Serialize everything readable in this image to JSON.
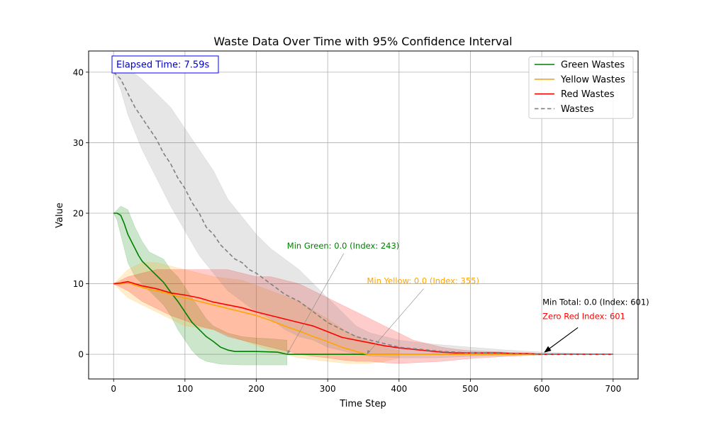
{
  "chart_data": {
    "type": "line",
    "title": "Waste Data Over Time with 95% Confidence Interval",
    "xlabel": "Time Step",
    "ylabel": "Value",
    "xlim": [
      -35,
      735
    ],
    "ylim": [
      -3.5,
      43
    ],
    "xticks": [
      0,
      100,
      200,
      300,
      400,
      500,
      600,
      700
    ],
    "yticks": [
      0,
      10,
      20,
      30,
      40
    ],
    "grid": true,
    "legend_placement": "top-right",
    "series": [
      {
        "name": "Green Wastes",
        "color": "#008000",
        "style": "solid",
        "points": [
          [
            0,
            20
          ],
          [
            5,
            20
          ],
          [
            10,
            19.7
          ],
          [
            15,
            18.5
          ],
          [
            20,
            17
          ],
          [
            25,
            16
          ],
          [
            30,
            15
          ],
          [
            35,
            14
          ],
          [
            40,
            13.2
          ],
          [
            50,
            12.2
          ],
          [
            60,
            11.2
          ],
          [
            70,
            10.2
          ],
          [
            80,
            8.8
          ],
          [
            90,
            7.5
          ],
          [
            100,
            6
          ],
          [
            110,
            4.5
          ],
          [
            120,
            3.5
          ],
          [
            130,
            2.5
          ],
          [
            140,
            1.8
          ],
          [
            150,
            1
          ],
          [
            160,
            0.6
          ],
          [
            170,
            0.4
          ],
          [
            200,
            0.4
          ],
          [
            230,
            0.3
          ],
          [
            243,
            0
          ],
          [
            700,
            0
          ]
        ],
        "ci_upper": [
          [
            0,
            20
          ],
          [
            5,
            20.5
          ],
          [
            10,
            21
          ],
          [
            20,
            20.5
          ],
          [
            30,
            18
          ],
          [
            40,
            16
          ],
          [
            50,
            14.5
          ],
          [
            60,
            14
          ],
          [
            70,
            13.5
          ],
          [
            80,
            12
          ],
          [
            90,
            11
          ],
          [
            100,
            9.5
          ],
          [
            110,
            8
          ],
          [
            120,
            6.5
          ],
          [
            130,
            5
          ],
          [
            140,
            4
          ],
          [
            150,
            3.5
          ],
          [
            160,
            3
          ],
          [
            180,
            2.5
          ],
          [
            200,
            2.3
          ],
          [
            220,
            2.2
          ],
          [
            243,
            2
          ]
        ],
        "ci_lower": [
          [
            0,
            20
          ],
          [
            5,
            19
          ],
          [
            10,
            17
          ],
          [
            20,
            13
          ],
          [
            30,
            11
          ],
          [
            40,
            10
          ],
          [
            50,
            9
          ],
          [
            60,
            8
          ],
          [
            70,
            7
          ],
          [
            80,
            5.5
          ],
          [
            90,
            3.5
          ],
          [
            100,
            2
          ],
          [
            110,
            0.5
          ],
          [
            120,
            -0.5
          ],
          [
            130,
            -1
          ],
          [
            150,
            -1.4
          ],
          [
            180,
            -1.5
          ],
          [
            200,
            -1.5
          ],
          [
            220,
            -1.5
          ],
          [
            243,
            -1.5
          ]
        ]
      },
      {
        "name": "Yellow Wastes",
        "color": "#FFA500",
        "style": "solid",
        "points": [
          [
            0,
            10
          ],
          [
            10,
            10
          ],
          [
            20,
            10.2
          ],
          [
            30,
            9.8
          ],
          [
            40,
            9.5
          ],
          [
            50,
            9.2
          ],
          [
            60,
            9
          ],
          [
            70,
            8.8
          ],
          [
            80,
            8.5
          ],
          [
            90,
            8.2
          ],
          [
            100,
            8
          ],
          [
            120,
            7.5
          ],
          [
            140,
            7
          ],
          [
            160,
            6.5
          ],
          [
            180,
            6
          ],
          [
            200,
            5.5
          ],
          [
            220,
            4.8
          ],
          [
            240,
            4
          ],
          [
            260,
            3.3
          ],
          [
            280,
            2.5
          ],
          [
            300,
            1.8
          ],
          [
            320,
            1
          ],
          [
            340,
            0.4
          ],
          [
            355,
            0
          ],
          [
            700,
            0
          ]
        ],
        "ci_upper": [
          [
            0,
            10
          ],
          [
            10,
            11
          ],
          [
            20,
            12
          ],
          [
            40,
            13
          ],
          [
            60,
            13
          ],
          [
            80,
            12.5
          ],
          [
            100,
            12
          ],
          [
            140,
            11
          ],
          [
            180,
            10.5
          ],
          [
            220,
            9
          ],
          [
            260,
            7.5
          ],
          [
            300,
            5
          ],
          [
            330,
            3
          ],
          [
            355,
            2
          ],
          [
            380,
            1
          ],
          [
            400,
            0.5
          ]
        ],
        "ci_lower": [
          [
            0,
            10
          ],
          [
            10,
            9
          ],
          [
            20,
            8
          ],
          [
            40,
            7
          ],
          [
            60,
            6
          ],
          [
            80,
            5
          ],
          [
            100,
            4
          ],
          [
            140,
            3.5
          ],
          [
            180,
            2
          ],
          [
            220,
            0.5
          ],
          [
            260,
            -0.5
          ],
          [
            300,
            -1
          ],
          [
            330,
            -1.3
          ],
          [
            355,
            -1.3
          ],
          [
            380,
            -1
          ],
          [
            400,
            -0.5
          ]
        ]
      },
      {
        "name": "Red Wastes",
        "color": "#FF0000",
        "style": "solid",
        "points": [
          [
            0,
            10
          ],
          [
            10,
            10.1
          ],
          [
            20,
            10.3
          ],
          [
            30,
            10
          ],
          [
            40,
            9.7
          ],
          [
            60,
            9.3
          ],
          [
            80,
            8.7
          ],
          [
            100,
            8.4
          ],
          [
            120,
            8
          ],
          [
            140,
            7.4
          ],
          [
            160,
            7
          ],
          [
            180,
            6.6
          ],
          [
            200,
            6
          ],
          [
            220,
            5.5
          ],
          [
            240,
            5
          ],
          [
            260,
            4.5
          ],
          [
            280,
            4
          ],
          [
            300,
            3.2
          ],
          [
            320,
            2.4
          ],
          [
            340,
            2
          ],
          [
            360,
            1.6
          ],
          [
            380,
            1.2
          ],
          [
            400,
            0.9
          ],
          [
            420,
            0.7
          ],
          [
            440,
            0.5
          ],
          [
            460,
            0.3
          ],
          [
            480,
            0.2
          ],
          [
            500,
            0.2
          ],
          [
            520,
            0.2
          ],
          [
            540,
            0.2
          ],
          [
            560,
            0.1
          ],
          [
            580,
            0.1
          ],
          [
            601,
            0
          ],
          [
            700,
            0
          ]
        ],
        "ci_upper": [
          [
            0,
            10
          ],
          [
            20,
            11
          ],
          [
            40,
            11.5
          ],
          [
            60,
            12
          ],
          [
            80,
            12
          ],
          [
            100,
            12
          ],
          [
            120,
            12
          ],
          [
            140,
            12
          ],
          [
            160,
            12
          ],
          [
            180,
            11.5
          ],
          [
            200,
            11
          ],
          [
            220,
            11
          ],
          [
            240,
            10.5
          ],
          [
            260,
            10
          ],
          [
            280,
            9
          ],
          [
            300,
            8
          ],
          [
            320,
            7
          ],
          [
            340,
            6
          ],
          [
            360,
            5
          ],
          [
            380,
            4
          ],
          [
            400,
            3
          ],
          [
            420,
            2
          ],
          [
            440,
            1.5
          ],
          [
            460,
            1
          ],
          [
            480,
            0.7
          ],
          [
            500,
            0.5
          ],
          [
            550,
            0.3
          ],
          [
            601,
            0.1
          ],
          [
            700,
            0
          ]
        ],
        "ci_lower": [
          [
            0,
            10
          ],
          [
            20,
            9
          ],
          [
            40,
            7.5
          ],
          [
            60,
            6.5
          ],
          [
            80,
            5.5
          ],
          [
            100,
            4.8
          ],
          [
            120,
            4
          ],
          [
            140,
            3.5
          ],
          [
            160,
            2.5
          ],
          [
            180,
            2
          ],
          [
            200,
            1.5
          ],
          [
            220,
            1
          ],
          [
            240,
            0.5
          ],
          [
            260,
            0
          ],
          [
            280,
            -0.3
          ],
          [
            300,
            -0.5
          ],
          [
            320,
            -0.8
          ],
          [
            340,
            -1
          ],
          [
            360,
            -1
          ],
          [
            380,
            -1.2
          ],
          [
            400,
            -1.3
          ],
          [
            420,
            -1.2
          ],
          [
            440,
            -1.1
          ],
          [
            460,
            -1
          ],
          [
            480,
            -0.8
          ],
          [
            500,
            -0.6
          ],
          [
            550,
            -0.3
          ],
          [
            601,
            -0.1
          ],
          [
            700,
            0
          ]
        ]
      },
      {
        "name": "Wastes",
        "color": "#808080",
        "style": "dashed",
        "points": [
          [
            0,
            40
          ],
          [
            10,
            39
          ],
          [
            20,
            37
          ],
          [
            30,
            35
          ],
          [
            40,
            33.5
          ],
          [
            50,
            32
          ],
          [
            60,
            30.5
          ],
          [
            70,
            28.5
          ],
          [
            80,
            27
          ],
          [
            90,
            25
          ],
          [
            100,
            23.5
          ],
          [
            110,
            21.5
          ],
          [
            120,
            20
          ],
          [
            130,
            18
          ],
          [
            140,
            17
          ],
          [
            150,
            15.5
          ],
          [
            160,
            14.5
          ],
          [
            170,
            13.5
          ],
          [
            180,
            13
          ],
          [
            190,
            12
          ],
          [
            200,
            11.5
          ],
          [
            220,
            10
          ],
          [
            240,
            8.5
          ],
          [
            260,
            7.5
          ],
          [
            280,
            6
          ],
          [
            300,
            4.5
          ],
          [
            320,
            3.5
          ],
          [
            340,
            2.5
          ],
          [
            360,
            2
          ],
          [
            380,
            1.5
          ],
          [
            400,
            1
          ],
          [
            420,
            0.8
          ],
          [
            440,
            0.6
          ],
          [
            460,
            0.4
          ],
          [
            480,
            0.3
          ],
          [
            500,
            0.2
          ],
          [
            550,
            0.1
          ],
          [
            601,
            0
          ],
          [
            700,
            0
          ]
        ],
        "ci_upper": [
          [
            0,
            40
          ],
          [
            10,
            41
          ],
          [
            20,
            40.5
          ],
          [
            40,
            39
          ],
          [
            60,
            37
          ],
          [
            80,
            35
          ],
          [
            100,
            32
          ],
          [
            120,
            29
          ],
          [
            140,
            26
          ],
          [
            160,
            22
          ],
          [
            180,
            19.5
          ],
          [
            200,
            17
          ],
          [
            220,
            15
          ],
          [
            240,
            13.5
          ],
          [
            260,
            12
          ],
          [
            280,
            10
          ],
          [
            300,
            8
          ],
          [
            320,
            6
          ],
          [
            340,
            4
          ],
          [
            360,
            3
          ],
          [
            400,
            2
          ],
          [
            440,
            1.5
          ],
          [
            500,
            1
          ],
          [
            550,
            0.6
          ],
          [
            601,
            0.3
          ],
          [
            700,
            0
          ]
        ],
        "ci_lower": [
          [
            0,
            40
          ],
          [
            10,
            37.5
          ],
          [
            20,
            34
          ],
          [
            40,
            29
          ],
          [
            60,
            25
          ],
          [
            80,
            21
          ],
          [
            100,
            17.5
          ],
          [
            120,
            14
          ],
          [
            140,
            11.5
          ],
          [
            160,
            9
          ],
          [
            180,
            7.5
          ],
          [
            200,
            6
          ],
          [
            220,
            5
          ],
          [
            240,
            3.5
          ],
          [
            260,
            2.5
          ],
          [
            280,
            2
          ],
          [
            300,
            1
          ],
          [
            320,
            0.5
          ],
          [
            340,
            0
          ],
          [
            360,
            -0.3
          ],
          [
            400,
            -0.5
          ],
          [
            450,
            -0.5
          ],
          [
            500,
            -0.3
          ],
          [
            550,
            -0.2
          ],
          [
            601,
            0
          ],
          [
            700,
            0
          ]
        ]
      }
    ],
    "annotations": [
      {
        "text": "Elapsed Time: 7.59s",
        "color": "#0000CC",
        "kind": "boxed"
      },
      {
        "text": "Min Green: 0.0 (Index: 243)",
        "color": "#008000",
        "text_at": [
          243,
          15
        ],
        "arrow_to": [
          243,
          0
        ]
      },
      {
        "text": "Min Yellow: 0.0 (Index: 355)",
        "color": "#FFA500",
        "text_at": [
          355,
          10
        ],
        "arrow_to": [
          355,
          0
        ]
      },
      {
        "text": "Min Total: 0.0 (Index: 601)",
        "color": "#000000",
        "text_at": [
          601,
          7
        ],
        "arrow_to": [
          601,
          0
        ]
      },
      {
        "text": "Zero Red Index: 601",
        "color": "#FF0000",
        "text_at": [
          601,
          5
        ]
      }
    ]
  }
}
